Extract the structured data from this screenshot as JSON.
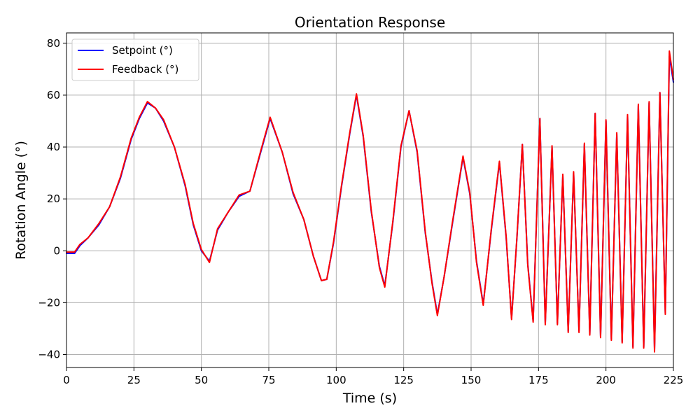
{
  "chart_data": {
    "type": "line",
    "title": "Orientation Response",
    "xlabel": "Time (s)",
    "ylabel": "Rotation Angle (°)",
    "xlim": [
      0,
      225
    ],
    "ylim": [
      -45,
      84
    ],
    "xticks": [
      0,
      25,
      50,
      75,
      100,
      125,
      150,
      175,
      200,
      225
    ],
    "yticks": [
      -40,
      -20,
      0,
      20,
      40,
      60,
      80
    ],
    "grid": true,
    "legend_position": "upper-left",
    "colors": {
      "setpoint": "#0000ff",
      "feedback": "#ff0000",
      "grid": "#b0b0b0"
    },
    "series": [
      {
        "name": "Setpoint (°)",
        "color": "#0000ff",
        "x": [
          0,
          3,
          5,
          8,
          12,
          16,
          20,
          24,
          27,
          30,
          33,
          36,
          40,
          44,
          47,
          50,
          53,
          56,
          60,
          64,
          68,
          72,
          75.5,
          80,
          84,
          88,
          91.5,
          94.5,
          96.5,
          99,
          102,
          105,
          107.5,
          110,
          113,
          116,
          118,
          121,
          124,
          127,
          130,
          133,
          135.5,
          137.5,
          140,
          143,
          147,
          149.5,
          152,
          154.5,
          157.5,
          160.5,
          163,
          165,
          167,
          169,
          171,
          173,
          175.5,
          177.5,
          180,
          182,
          184,
          186,
          188,
          190,
          192,
          194,
          196,
          198,
          200,
          202,
          204,
          206,
          208,
          210,
          212,
          214,
          216,
          218,
          220,
          222,
          223.5,
          225
        ],
        "y": [
          -1,
          -1,
          2,
          5,
          10,
          17,
          28,
          43,
          51,
          57,
          55,
          50,
          40,
          25,
          10,
          0,
          -4,
          8,
          15,
          21,
          23,
          38,
          51,
          38,
          22,
          12,
          -2,
          -11.5,
          -11,
          3,
          25,
          45,
          60,
          44,
          15,
          -6,
          -13.5,
          11,
          40,
          54,
          38,
          7,
          -12,
          -24.5,
          -10,
          10,
          36,
          22,
          -4,
          -20.5,
          8,
          34,
          5,
          -26,
          5,
          41,
          -5,
          -27,
          51,
          -28,
          40,
          -28,
          29,
          -31,
          30,
          -31,
          41,
          -32,
          53,
          -33,
          50,
          -34,
          45,
          -35,
          52,
          -37,
          56,
          -37,
          57,
          -38,
          61,
          -24,
          75,
          65
        ]
      },
      {
        "name": "Feedback (°)",
        "color": "#ff0000",
        "x": [
          0,
          3,
          5,
          8,
          12,
          16,
          20,
          24,
          27,
          30,
          33,
          36,
          40,
          44,
          47,
          50,
          53,
          56,
          60,
          64,
          68,
          72,
          75.5,
          80,
          84,
          88,
          91.5,
          94.5,
          96.5,
          99,
          102,
          105,
          107.5,
          110,
          113,
          116,
          118,
          121,
          124,
          127,
          130,
          133,
          135.5,
          137.5,
          140,
          143,
          147,
          149.5,
          152,
          154.5,
          157.5,
          160.5,
          163,
          165,
          167,
          169,
          171,
          173,
          175.5,
          177.5,
          180,
          182,
          184,
          186,
          188,
          190,
          192,
          194,
          196,
          198,
          200,
          202,
          204,
          206,
          208,
          210,
          212,
          214,
          216,
          218,
          220,
          222,
          223.5,
          225
        ],
        "y": [
          -0.5,
          -0.5,
          2.5,
          5,
          10.5,
          17,
          28.5,
          43.5,
          51.5,
          57.5,
          55,
          50.5,
          40,
          25.5,
          10.5,
          0.5,
          -4.5,
          8.5,
          15,
          21.5,
          23,
          38.5,
          51.5,
          38,
          22.5,
          12,
          -2,
          -11.5,
          -11,
          3.5,
          25.5,
          45.5,
          60.5,
          44.5,
          15.5,
          -6.5,
          -14,
          11.5,
          40.5,
          54,
          38.5,
          7.5,
          -12.5,
          -25,
          -10,
          10.5,
          36.5,
          22.5,
          -4.5,
          -21,
          8.5,
          34.5,
          5.5,
          -26.5,
          5.5,
          41,
          -5.5,
          -27.5,
          51,
          -28.5,
          40.5,
          -28.5,
          29.5,
          -31.5,
          30.5,
          -31.5,
          41.5,
          -32.5,
          53,
          -33.5,
          50.5,
          -34.5,
          45.5,
          -35.5,
          52.5,
          -37.5,
          56.5,
          -37.5,
          57.5,
          -39,
          61,
          -24.5,
          77,
          66
        ]
      }
    ]
  }
}
